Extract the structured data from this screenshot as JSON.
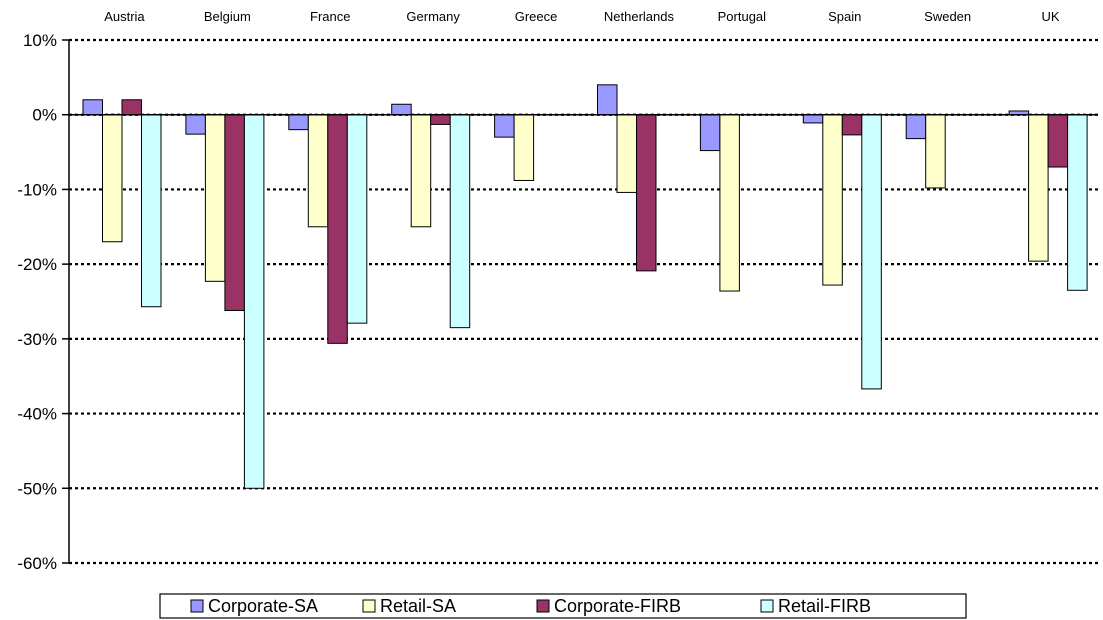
{
  "chart_data": {
    "type": "bar",
    "categories": [
      "Austria",
      "Belgium",
      "France",
      "Germany",
      "Greece",
      "Netherlands",
      "Portugal",
      "Spain",
      "Sweden",
      "UK"
    ],
    "y_ticks": [
      "10%",
      "0%",
      "-10%",
      "-20%",
      "-30%",
      "-40%",
      "-50%",
      "-60%"
    ],
    "ylim": [
      -60,
      10
    ],
    "unit": "%",
    "grid": true,
    "legend_position": "bottom",
    "series": [
      {
        "name": "Corporate-SA",
        "color": "#9999ff",
        "values": [
          2,
          -2.6,
          -2,
          1.4,
          -3,
          4,
          -4.8,
          -1.1,
          -3.2,
          0.5
        ]
      },
      {
        "name": "Retail-SA",
        "color": "#ffffcc",
        "values": [
          -17,
          -22.3,
          -15,
          -15,
          -8.8,
          -10.4,
          -23.6,
          -22.8,
          -9.8,
          -19.6
        ]
      },
      {
        "name": "Corporate-FIRB",
        "color": "#993366",
        "values": [
          2,
          -26.2,
          -30.6,
          -1.3,
          null,
          -20.9,
          null,
          -2.7,
          null,
          -7
        ]
      },
      {
        "name": "Retail-FIRB",
        "color": "#ccffff",
        "values": [
          -25.7,
          -50,
          -27.9,
          -28.5,
          null,
          null,
          null,
          -36.7,
          null,
          -23.5
        ]
      }
    ]
  }
}
